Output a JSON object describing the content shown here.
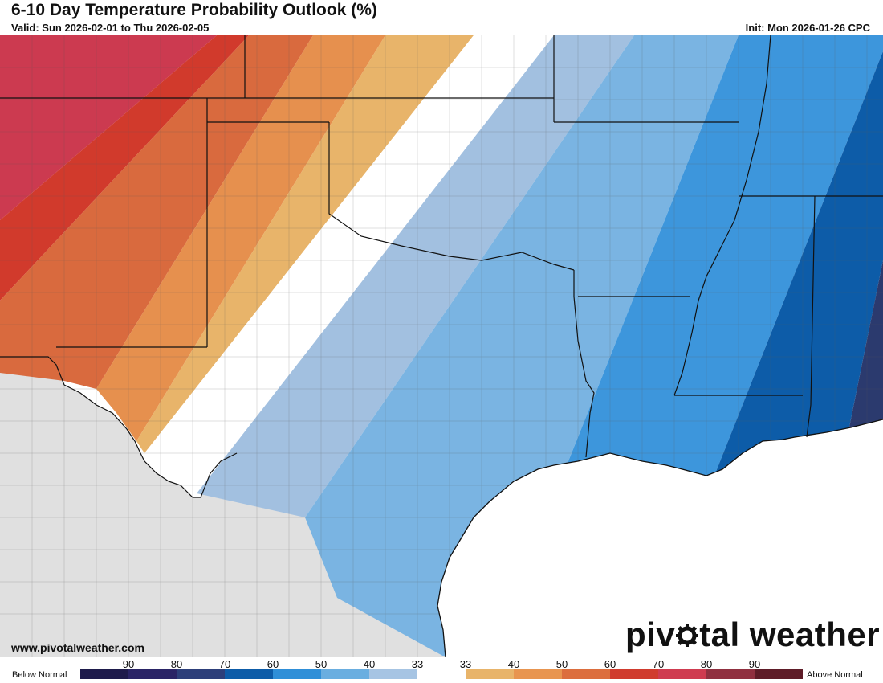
{
  "header": {
    "title": "6-10 Day Temperature Probability Outlook (%)",
    "valid": "Valid: Sun 2026-02-01 to Thu 2026-02-05",
    "init": "Init: Mon 2026-01-26 CPC"
  },
  "footer": {
    "website": "www.pivotalweather.com",
    "brand_before": "piv",
    "brand_after": "tal weather"
  },
  "legend": {
    "below_label": "Below Normal",
    "above_label": "Above Normal",
    "tick_labels": [
      "90",
      "80",
      "70",
      "60",
      "50",
      "40",
      "33",
      "33",
      "40",
      "50",
      "60",
      "70",
      "80",
      "90"
    ],
    "swatches": [
      "#1e1b4b",
      "#2a2466",
      "#2d3f7a",
      "#0d5ca8",
      "#2f8fd8",
      "#6aaee0",
      "#a6c4e3",
      "#ffffff",
      "#e8b46a",
      "#e89550",
      "#dc6e3e",
      "#d03b2e",
      "#cf3b50",
      "#903040",
      "#5e1c28"
    ]
  },
  "map": {
    "colors": {
      "land_unforecast": "#e0e0e0",
      "water": "#ffffff",
      "below_33": "#a2c0e0",
      "below_40": "#7ab4e2",
      "below_50": "#3d96dc",
      "below_60": "#0d5ca8",
      "below_70": "#2b3a6e",
      "near_normal": "#ffffff",
      "above_33": "#e8b46a",
      "above_40": "#e6904e",
      "above_50": "#d96a3e",
      "above_60": "#d13a2c",
      "above_70": "#cc3a50"
    }
  }
}
